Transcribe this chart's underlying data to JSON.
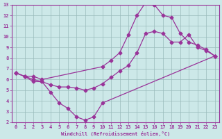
{
  "xlabel": "Windchill (Refroidissement éolien,°C)",
  "bg_color": "#cce8e8",
  "line_color": "#993399",
  "grid_color": "#99bbbb",
  "xlim": [
    -0.5,
    23.5
  ],
  "ylim": [
    2,
    13
  ],
  "xticks": [
    0,
    1,
    2,
    3,
    4,
    5,
    6,
    7,
    8,
    9,
    10,
    11,
    12,
    13,
    14,
    15,
    16,
    17,
    18,
    19,
    20,
    21,
    22,
    23
  ],
  "yticks": [
    2,
    3,
    4,
    5,
    6,
    7,
    8,
    9,
    10,
    11,
    12,
    13
  ],
  "line1_x": [
    0,
    1,
    2,
    3,
    4,
    5,
    6,
    7,
    8,
    9,
    10,
    23
  ],
  "line1_y": [
    6.6,
    6.3,
    5.8,
    5.8,
    4.8,
    3.8,
    3.3,
    2.5,
    2.2,
    2.5,
    3.8,
    8.2
  ],
  "line2_x": [
    0,
    1,
    2,
    3,
    4,
    5,
    6,
    7,
    8,
    9,
    10,
    11,
    12,
    13,
    14,
    15,
    16,
    17,
    18,
    19,
    20,
    21,
    22,
    23
  ],
  "line2_y": [
    6.6,
    6.3,
    6.0,
    5.8,
    5.5,
    5.3,
    5.3,
    5.2,
    5.0,
    5.2,
    5.6,
    6.2,
    6.8,
    7.3,
    8.5,
    10.3,
    10.5,
    10.3,
    9.5,
    9.5,
    10.2,
    9.0,
    8.7,
    8.2
  ],
  "line3_x": [
    0,
    1,
    2,
    3,
    10,
    11,
    12,
    13,
    14,
    15,
    16,
    17,
    18,
    19,
    20,
    21,
    22,
    23
  ],
  "line3_y": [
    6.6,
    6.3,
    6.3,
    6.0,
    7.2,
    7.8,
    8.5,
    10.2,
    12.0,
    13.2,
    13.0,
    12.0,
    11.8,
    10.3,
    9.5,
    9.2,
    8.8,
    8.2
  ]
}
